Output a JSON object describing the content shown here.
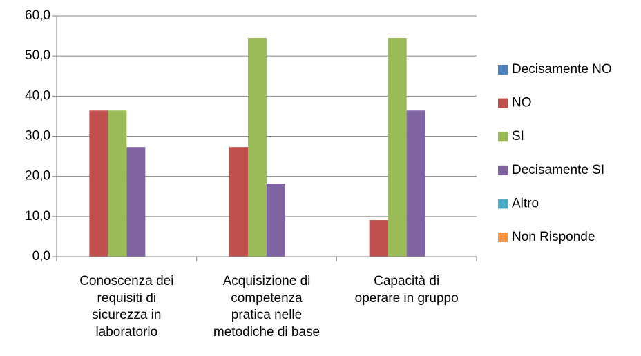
{
  "chart_data": {
    "type": "bar",
    "categories": [
      "Conoscenza dei\nrequisiti di\nsicurezza in\nlaboratorio",
      "Acquisizione di\ncompetenza\npratica nelle\nmetodiche di base",
      "Capacità di\noperare in gruppo"
    ],
    "series": [
      {
        "name": "Decisamente NO",
        "color": "#4f81bd",
        "values": [
          0,
          0,
          0
        ]
      },
      {
        "name": "NO",
        "color": "#c0504d",
        "values": [
          36.4,
          27.3,
          9.1
        ]
      },
      {
        "name": "SI",
        "color": "#9bbb59",
        "values": [
          36.4,
          54.5,
          54.5
        ]
      },
      {
        "name": "Decisamente SI",
        "color": "#8064a2",
        "values": [
          27.3,
          18.2,
          36.4
        ]
      },
      {
        "name": "Altro",
        "color": "#4bacc6",
        "values": [
          0,
          0,
          0
        ]
      },
      {
        "name": "Non Risponde",
        "color": "#f79646",
        "values": [
          0,
          0,
          0
        ]
      }
    ],
    "ylim": [
      0,
      60
    ],
    "yticks": [
      {
        "value": 0,
        "label": "0,0"
      },
      {
        "value": 10,
        "label": "10,0"
      },
      {
        "value": 20,
        "label": "20,0"
      },
      {
        "value": 30,
        "label": "30,0"
      },
      {
        "value": 40,
        "label": "40,0"
      },
      {
        "value": 50,
        "label": "50,0"
      },
      {
        "value": 60,
        "label": "60,0"
      }
    ],
    "grid": true,
    "legend": "right"
  }
}
